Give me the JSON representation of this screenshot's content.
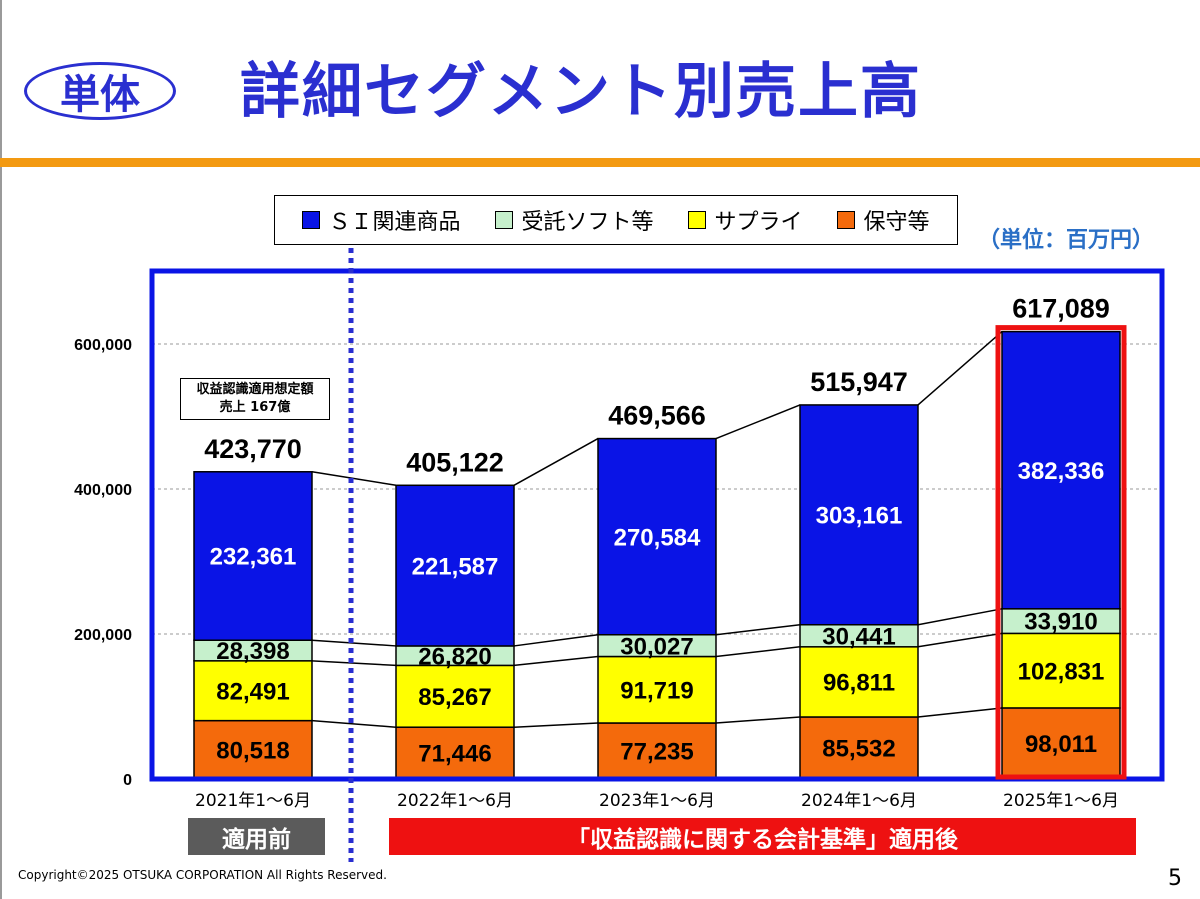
{
  "header": {
    "badge": "単体",
    "title": "詳細セグメント別売上高"
  },
  "unit_label": "（単位：百万円）",
  "legend": [
    {
      "label": "ＳＩ関連商品",
      "color": "#0a14e6"
    },
    {
      "label": "受託ソフト等",
      "color": "#c6f0cc"
    },
    {
      "label": "サプライ",
      "color": "#ffff00"
    },
    {
      "label": "保守等",
      "color": "#f46a0c"
    }
  ],
  "note": {
    "line1": "収益認識適用想定額",
    "line2": "売上 167億"
  },
  "bands": {
    "before": "適用前",
    "after": "「収益認識に関する会計基準」適用後"
  },
  "chart_data": {
    "type": "bar",
    "stacked": true,
    "categories": [
      "2021年1～6月",
      "2022年1～6月",
      "2023年1～6月",
      "2024年1～6月",
      "2025年1～6月"
    ],
    "series": [
      {
        "name": "保守等",
        "color": "#f46a0c",
        "values": [
          80518,
          71446,
          77235,
          85532,
          98011
        ],
        "labels": [
          "80,518",
          "71,446",
          "77,235",
          "85,532",
          "98,011"
        ]
      },
      {
        "name": "サプライ",
        "color": "#ffff00",
        "values": [
          82491,
          85267,
          91719,
          96811,
          102831
        ],
        "labels": [
          "82,491",
          "85,267",
          "91,719",
          "96,811",
          "102,831"
        ]
      },
      {
        "name": "受託ソフト等",
        "color": "#c6f0cc",
        "values": [
          28398,
          26820,
          30027,
          30441,
          33910
        ],
        "labels": [
          "28,398",
          "26,820",
          "30,027",
          "30,441",
          "33,910"
        ]
      },
      {
        "name": "ＳＩ関連商品",
        "color": "#0a14e6",
        "values": [
          232361,
          221587,
          270584,
          303161,
          382336
        ],
        "labels": [
          "232,361",
          "221,587",
          "270,584",
          "303,161",
          "382,336"
        ]
      }
    ],
    "totals": [
      423770,
      405122,
      469566,
      515947,
      617089
    ],
    "total_labels": [
      "423,770",
      "405,122",
      "469,566",
      "515,947",
      "617,089"
    ],
    "yticks": [
      0,
      200000,
      400000,
      600000
    ],
    "ytick_labels": [
      "0",
      "200,000",
      "400,000",
      "600,000"
    ],
    "ylim": [
      0,
      700000
    ],
    "grid": true,
    "highlight_category": "2025年1～6月",
    "frame_color": "#0a14e6",
    "highlight_color": "#ee1111"
  },
  "footer": {
    "copyright": "Copyright©2025 OTSUKA CORPORATION All Rights Reserved.",
    "page_number": "5"
  }
}
